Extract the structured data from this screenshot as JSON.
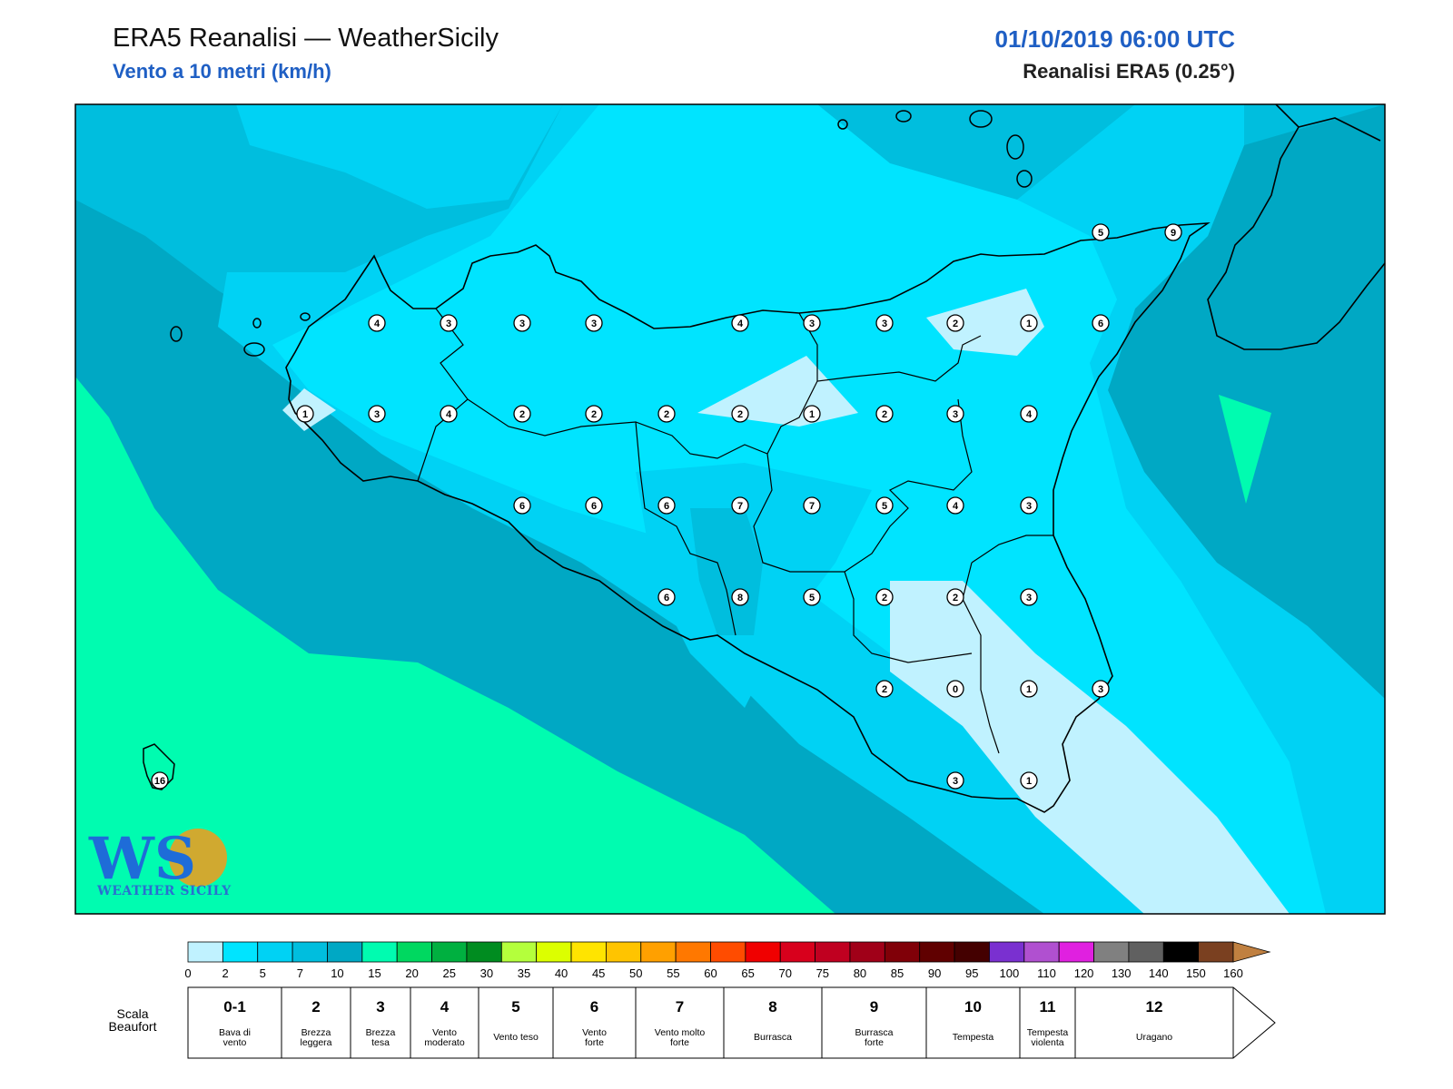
{
  "header": {
    "title": "ERA5 Reanalisi — WeatherSicily",
    "subtitle": "Vento a 10 metri (km/h)",
    "datetime": "01/10/2019 06:00 UTC",
    "model": "Reanalisi ERA5 (0.25°)"
  },
  "logo": {
    "letters": "WS",
    "text": "WEATHER SICILY"
  },
  "colorbar": {
    "ticks": [
      "0",
      "2",
      "5",
      "7",
      "10",
      "15",
      "20",
      "25",
      "30",
      "35",
      "40",
      "45",
      "50",
      "55",
      "60",
      "65",
      "70",
      "75",
      "80",
      "85",
      "90",
      "95",
      "100",
      "110",
      "120",
      "130",
      "140",
      "150",
      "160"
    ],
    "colors": [
      "#c0f2ff",
      "#00e4ff",
      "#00d2f4",
      "#00bede",
      "#00a8c4",
      "#00fcb0",
      "#00d860",
      "#00b040",
      "#008c20",
      "#b4ff3c",
      "#dcff00",
      "#ffe400",
      "#ffc400",
      "#ffa000",
      "#ff7800",
      "#ff4c00",
      "#f00000",
      "#d8001c",
      "#c00020",
      "#a00018",
      "#800008",
      "#600000",
      "#440000",
      "#7a30d0",
      "#b050d0",
      "#e020e0",
      "#808080",
      "#606060",
      "#000000",
      "#7a4020",
      "#c08040"
    ]
  },
  "beaufort": {
    "label_line1": "Scala",
    "label_line2": "Beaufort",
    "cells": [
      {
        "num": "0-1",
        "desc": [
          "Bava di",
          "vento"
        ]
      },
      {
        "num": "2",
        "desc": [
          "Brezza",
          "leggera"
        ]
      },
      {
        "num": "3",
        "desc": [
          "Brezza",
          "tesa"
        ]
      },
      {
        "num": "4",
        "desc": [
          "Vento",
          "moderato"
        ]
      },
      {
        "num": "5",
        "desc": [
          "Vento teso"
        ]
      },
      {
        "num": "6",
        "desc": [
          "Vento",
          "forte"
        ]
      },
      {
        "num": "7",
        "desc": [
          "Vento molto",
          "forte"
        ]
      },
      {
        "num": "8",
        "desc": [
          "Burrasca"
        ]
      },
      {
        "num": "9",
        "desc": [
          "Burrasca",
          "forte"
        ]
      },
      {
        "num": "10",
        "desc": [
          "Tempesta"
        ]
      },
      {
        "num": "11",
        "desc": [
          "Tempesta",
          "violenta"
        ]
      },
      {
        "num": "12",
        "desc": [
          "Uragano"
        ]
      }
    ]
  },
  "stations": [
    "5",
    "9",
    "4",
    "3",
    "3",
    "3",
    "4",
    "3",
    "3",
    "2",
    "1",
    "6",
    "1",
    "3",
    "4",
    "2",
    "2",
    "2",
    "2",
    "1",
    "2",
    "3",
    "4",
    "6",
    "6",
    "6",
    "7",
    "7",
    "5",
    "4",
    "3",
    "6",
    "8",
    "5",
    "2",
    "2",
    "3",
    "2",
    "0",
    "1",
    "3",
    "3",
    "1",
    "16"
  ]
}
